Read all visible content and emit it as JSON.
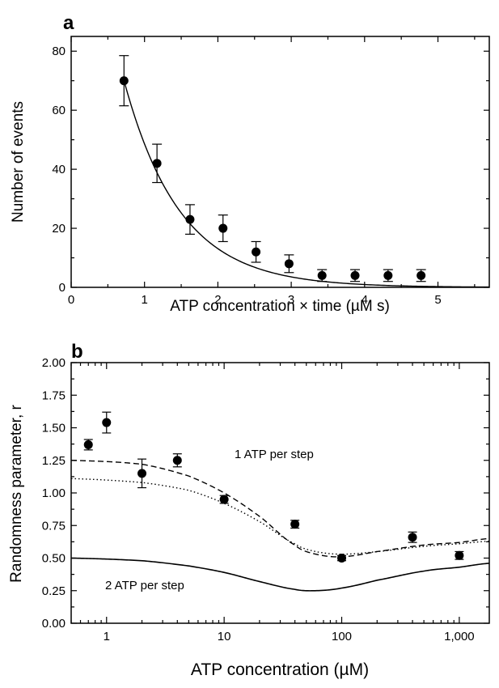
{
  "chart_data": [
    {
      "panel_label": "a",
      "type": "scatter",
      "xlabel": "ATP concentration × time (µM s)",
      "ylabel": "Number of events",
      "xlim": [
        0,
        5.7
      ],
      "ylim": [
        0,
        85
      ],
      "x_ticks": [
        "0",
        "1",
        "2",
        "3",
        "4",
        "5"
      ],
      "y_ticks": [
        "0",
        "20",
        "40",
        "60",
        "80"
      ],
      "points": [
        {
          "x": 0.72,
          "y": 70,
          "err": 8.5
        },
        {
          "x": 1.17,
          "y": 42,
          "err": 6.5
        },
        {
          "x": 1.62,
          "y": 23,
          "err": 5
        },
        {
          "x": 2.07,
          "y": 20,
          "err": 4.5
        },
        {
          "x": 2.52,
          "y": 12,
          "err": 3.5
        },
        {
          "x": 2.97,
          "y": 8,
          "err": 3
        },
        {
          "x": 3.42,
          "y": 4,
          "err": 2
        },
        {
          "x": 3.87,
          "y": 4,
          "err": 2
        },
        {
          "x": 4.32,
          "y": 4,
          "err": 2
        },
        {
          "x": 4.77,
          "y": 4,
          "err": 2
        }
      ],
      "fit_curve": {
        "type": "exponential",
        "amplitude": 180,
        "rate": 1.31
      }
    },
    {
      "panel_label": "b",
      "type": "scatter",
      "xlabel": "ATP concentration (µM)",
      "ylabel": "Randomness parameter, r",
      "x_scale": "log",
      "xlim": [
        0.5,
        1800
      ],
      "ylim": [
        0,
        2.0
      ],
      "x_ticks": [
        "1",
        "10",
        "100",
        "1,000"
      ],
      "y_ticks": [
        "0.00",
        "0.25",
        "0.50",
        "0.75",
        "1.00",
        "1.25",
        "1.50",
        "1.75",
        "2.00"
      ],
      "points": [
        {
          "x": 0.7,
          "y": 1.37,
          "err": 0.04
        },
        {
          "x": 1.0,
          "y": 1.54,
          "err": 0.08
        },
        {
          "x": 2.0,
          "y": 1.15,
          "err": 0.11
        },
        {
          "x": 4.0,
          "y": 1.25,
          "err": 0.05
        },
        {
          "x": 10,
          "y": 0.95,
          "err": 0.03
        },
        {
          "x": 40,
          "y": 0.76,
          "err": 0.03
        },
        {
          "x": 100,
          "y": 0.5,
          "err": 0.02
        },
        {
          "x": 400,
          "y": 0.66,
          "err": 0.04
        },
        {
          "x": 1000,
          "y": 0.52,
          "err": 0.03
        }
      ],
      "curves": [
        {
          "style": "dashed",
          "x": [
            0.5,
            2,
            5,
            10,
            20,
            40,
            60,
            100,
            200,
            500,
            1000,
            1800
          ],
          "y": [
            1.25,
            1.22,
            1.13,
            1.0,
            0.82,
            0.6,
            0.53,
            0.51,
            0.55,
            0.6,
            0.62,
            0.65
          ]
        },
        {
          "style": "dotted",
          "x": [
            0.5,
            2,
            5,
            10,
            20,
            40,
            60,
            100,
            200,
            500,
            1000,
            1800
          ],
          "y": [
            1.11,
            1.08,
            1.02,
            0.92,
            0.78,
            0.61,
            0.55,
            0.53,
            0.55,
            0.59,
            0.61,
            0.63
          ]
        },
        {
          "style": "solid",
          "x": [
            0.5,
            2,
            5,
            10,
            20,
            40,
            60,
            100,
            200,
            500,
            1000,
            1800
          ],
          "y": [
            0.5,
            0.48,
            0.44,
            0.39,
            0.32,
            0.26,
            0.25,
            0.27,
            0.33,
            0.4,
            0.43,
            0.46
          ]
        }
      ],
      "annotations": [
        "1 ATP per step",
        "2 ATP per step"
      ]
    }
  ]
}
